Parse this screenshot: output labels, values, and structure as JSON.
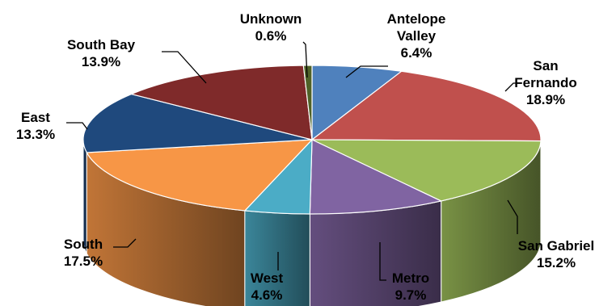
{
  "chart_data": {
    "type": "pie",
    "style": "3d",
    "slices": [
      {
        "label": "Antelope Valley",
        "value": 6.4,
        "display": "6.4%",
        "color": "#4f81bd"
      },
      {
        "label": "San Fernando",
        "value": 18.9,
        "display": "18.9%",
        "color": "#c0504d"
      },
      {
        "label": "San Gabriel",
        "value": 15.2,
        "display": "15.2%",
        "color": "#9bbb59"
      },
      {
        "label": "Metro",
        "value": 9.7,
        "display": "9.7%",
        "color": "#8064a2"
      },
      {
        "label": "West",
        "value": 4.6,
        "display": "4.6%",
        "color": "#4bacc6"
      },
      {
        "label": "South",
        "value": 17.5,
        "display": "17.5%",
        "color": "#f79646"
      },
      {
        "label": "East",
        "value": 13.3,
        "display": "13.3%",
        "color": "#1f497d"
      },
      {
        "label": "South Bay",
        "value": 13.9,
        "display": "13.9%",
        "color": "#7f2a2a"
      },
      {
        "label": "Unknown",
        "value": 0.6,
        "display": "0.6%",
        "color": "#4f6228"
      }
    ]
  }
}
